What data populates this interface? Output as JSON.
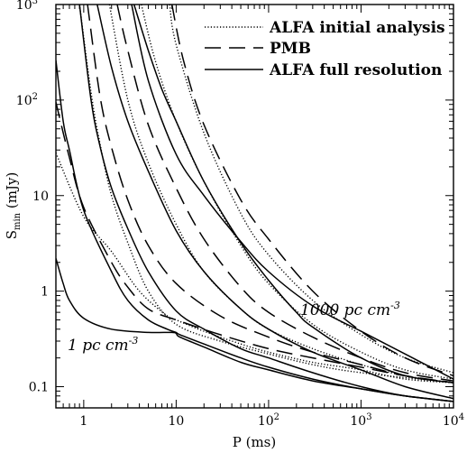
{
  "chart_data": {
    "type": "line",
    "xlabel": "P (ms)",
    "ylabel": "S",
    "ylabel_sub": "min",
    "ylabel_unit": " (mJy)",
    "xscale": "log",
    "yscale": "log",
    "xlim": [
      0.5,
      10000
    ],
    "ylim": [
      0.06,
      1000
    ],
    "xticks": [
      {
        "value": 1,
        "label": "1",
        "sup": ""
      },
      {
        "value": 10,
        "label": "10",
        "sup": ""
      },
      {
        "value": 100,
        "label": "10",
        "sup": "2"
      },
      {
        "value": 1000,
        "label": "10",
        "sup": "3"
      },
      {
        "value": 10000,
        "label": "10",
        "sup": "4"
      }
    ],
    "yticks": [
      {
        "value": 0.1,
        "label": "0.1",
        "sup": ""
      },
      {
        "value": 1,
        "label": "1",
        "sup": ""
      },
      {
        "value": 10,
        "label": "10",
        "sup": ""
      },
      {
        "value": 100,
        "label": "10",
        "sup": "2"
      },
      {
        "value": 1000,
        "label": "10",
        "sup": "3"
      }
    ],
    "legend_position": "top-right",
    "legend": [
      {
        "name": "ALFA initial analysis",
        "style": "dotted"
      },
      {
        "name": "PMB",
        "style": "dashed"
      },
      {
        "name": "ALFA full resolution",
        "style": "solid"
      }
    ],
    "annotations": [
      {
        "text": "1000 pc cm",
        "sup": "-3",
        "position": "right"
      },
      {
        "text": "1 pc cm",
        "sup": "-3",
        "position": "lower-left"
      }
    ],
    "series": [
      {
        "style": "solid",
        "points": [
          [
            0.5,
            2.2
          ],
          [
            0.6,
            1.2
          ],
          [
            0.7,
            0.8
          ],
          [
            1,
            0.52
          ],
          [
            2,
            0.4
          ],
          [
            5,
            0.37
          ],
          [
            9,
            0.37
          ],
          [
            10,
            0.36
          ],
          [
            11,
            0.33
          ],
          [
            20,
            0.26
          ],
          [
            50,
            0.18
          ],
          [
            100,
            0.15
          ],
          [
            300,
            0.115
          ],
          [
            1000,
            0.095
          ],
          [
            3000,
            0.08
          ],
          [
            10000,
            0.07
          ]
        ]
      },
      {
        "style": "solid",
        "points": [
          [
            0.5,
            260
          ],
          [
            0.6,
            60
          ],
          [
            0.7,
            30
          ],
          [
            1,
            7.0
          ],
          [
            2,
            1.6
          ],
          [
            3,
            0.8
          ],
          [
            5,
            0.5
          ],
          [
            8,
            0.4
          ],
          [
            10,
            0.37
          ],
          [
            11,
            0.35
          ],
          [
            20,
            0.28
          ],
          [
            50,
            0.2
          ],
          [
            100,
            0.16
          ],
          [
            300,
            0.12
          ],
          [
            1000,
            0.095
          ],
          [
            3000,
            0.08
          ],
          [
            10000,
            0.07
          ]
        ]
      },
      {
        "style": "solid",
        "points": [
          [
            0.9,
            1000
          ],
          [
            1.2,
            100
          ],
          [
            1.5,
            33
          ],
          [
            2,
            12
          ],
          [
            3,
            4.5
          ],
          [
            5,
            1.6
          ],
          [
            10,
            0.62
          ],
          [
            20,
            0.4
          ],
          [
            50,
            0.25
          ],
          [
            100,
            0.2
          ],
          [
            300,
            0.14
          ],
          [
            1000,
            0.1
          ],
          [
            3000,
            0.08
          ],
          [
            10000,
            0.07
          ]
        ]
      },
      {
        "style": "solid",
        "points": [
          [
            1.4,
            1000
          ],
          [
            2,
            220
          ],
          [
            3,
            60
          ],
          [
            5,
            18
          ],
          [
            10,
            4.3
          ],
          [
            20,
            1.6
          ],
          [
            50,
            0.65
          ],
          [
            100,
            0.4
          ],
          [
            300,
            0.23
          ],
          [
            1000,
            0.15
          ],
          [
            3000,
            0.1
          ],
          [
            10000,
            0.075
          ]
        ]
      },
      {
        "style": "solid",
        "points": [
          [
            3.5,
            1000
          ],
          [
            5,
            330
          ],
          [
            7,
            130
          ],
          [
            10,
            60
          ],
          [
            20,
            14
          ],
          [
            50,
            3.2
          ],
          [
            100,
            1.3
          ],
          [
            200,
            0.6
          ],
          [
            300,
            0.42
          ],
          [
            1000,
            0.2
          ],
          [
            3000,
            0.13
          ],
          [
            10000,
            0.11
          ]
        ]
      },
      {
        "style": "solid",
        "points": [
          [
            3.3,
            1000
          ],
          [
            5,
            160
          ],
          [
            10,
            27
          ],
          [
            20,
            10
          ],
          [
            50,
            3.3
          ],
          [
            100,
            1.6
          ],
          [
            300,
            0.7
          ],
          [
            1000,
            0.38
          ],
          [
            3000,
            0.22
          ],
          [
            10000,
            0.12
          ]
        ]
      },
      {
        "style": "dotted",
        "points": [
          [
            0.5,
            28
          ],
          [
            1,
            6.0
          ],
          [
            2,
            2.6
          ],
          [
            4,
            1.0
          ],
          [
            8,
            0.55
          ],
          [
            10,
            0.5
          ],
          [
            20,
            0.38
          ],
          [
            50,
            0.28
          ],
          [
            100,
            0.23
          ],
          [
            300,
            0.18
          ],
          [
            1000,
            0.15
          ],
          [
            3000,
            0.12
          ],
          [
            10000,
            0.11
          ]
        ]
      },
      {
        "style": "dotted",
        "points": [
          [
            0.9,
            1000
          ],
          [
            1.2,
            120
          ],
          [
            1.5,
            35
          ],
          [
            2,
            10
          ],
          [
            3,
            3.2
          ],
          [
            5,
            1.0
          ],
          [
            10,
            0.45
          ],
          [
            30,
            0.3
          ],
          [
            100,
            0.22
          ],
          [
            300,
            0.17
          ],
          [
            1000,
            0.14
          ],
          [
            10000,
            0.11
          ]
        ]
      },
      {
        "style": "dotted",
        "points": [
          [
            1.9,
            1000
          ],
          [
            3,
            100
          ],
          [
            5,
            22
          ],
          [
            10,
            5.0
          ],
          [
            20,
            1.6
          ],
          [
            50,
            0.65
          ],
          [
            100,
            0.4
          ],
          [
            300,
            0.25
          ],
          [
            1000,
            0.17
          ],
          [
            3000,
            0.13
          ],
          [
            10000,
            0.11
          ]
        ]
      },
      {
        "style": "dotted",
        "points": [
          [
            4.2,
            1000
          ],
          [
            6,
            250
          ],
          [
            10,
            60
          ],
          [
            20,
            14
          ],
          [
            50,
            3.0
          ],
          [
            100,
            1.2
          ],
          [
            300,
            0.45
          ],
          [
            1000,
            0.23
          ],
          [
            3000,
            0.15
          ],
          [
            10000,
            0.12
          ]
        ]
      },
      {
        "style": "dotted",
        "points": [
          [
            8.5,
            1000
          ],
          [
            10,
            380
          ],
          [
            20,
            45
          ],
          [
            50,
            6.5
          ],
          [
            100,
            2.4
          ],
          [
            300,
            0.8
          ],
          [
            1000,
            0.35
          ],
          [
            3000,
            0.2
          ],
          [
            10000,
            0.14
          ]
        ]
      },
      {
        "style": "dashed",
        "points": [
          [
            0.5,
            95
          ],
          [
            0.7,
            25
          ],
          [
            1,
            7.5
          ],
          [
            2,
            2.0
          ],
          [
            3,
            1.1
          ],
          [
            5,
            0.65
          ],
          [
            10,
            0.5
          ],
          [
            30,
            0.35
          ],
          [
            100,
            0.25
          ],
          [
            300,
            0.2
          ],
          [
            1000,
            0.16
          ],
          [
            3000,
            0.13
          ],
          [
            10000,
            0.11
          ]
        ]
      },
      {
        "style": "dashed",
        "points": [
          [
            1.1,
            1000
          ],
          [
            1.5,
            110
          ],
          [
            2,
            32
          ],
          [
            3,
            9
          ],
          [
            5,
            3.0
          ],
          [
            10,
            1.2
          ],
          [
            30,
            0.55
          ],
          [
            100,
            0.33
          ],
          [
            300,
            0.23
          ],
          [
            1000,
            0.17
          ],
          [
            3000,
            0.13
          ],
          [
            10000,
            0.11
          ]
        ]
      },
      {
        "style": "dashed",
        "points": [
          [
            2.3,
            1000
          ],
          [
            3,
            330
          ],
          [
            5,
            55
          ],
          [
            10,
            12
          ],
          [
            20,
            3.5
          ],
          [
            50,
            1.1
          ],
          [
            100,
            0.6
          ],
          [
            300,
            0.33
          ],
          [
            1000,
            0.2
          ],
          [
            3000,
            0.14
          ],
          [
            10000,
            0.115
          ]
        ]
      },
      {
        "style": "dashed",
        "points": [
          [
            9,
            1000
          ],
          [
            12,
            260
          ],
          [
            20,
            55
          ],
          [
            50,
            9
          ],
          [
            100,
            3.5
          ],
          [
            300,
            1.0
          ],
          [
            1000,
            0.38
          ],
          [
            3000,
            0.2
          ],
          [
            10000,
            0.13
          ]
        ]
      }
    ]
  }
}
